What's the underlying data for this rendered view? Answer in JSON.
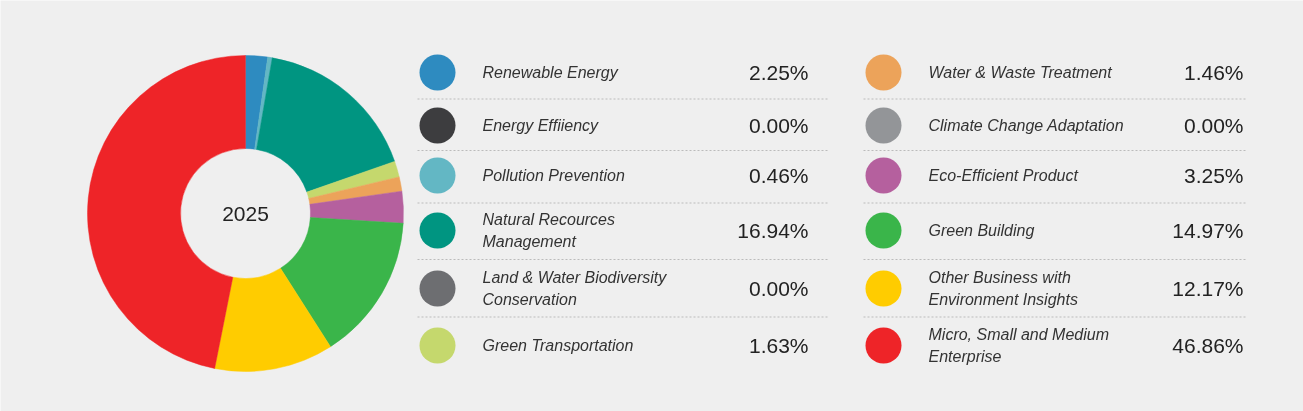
{
  "chart_data": {
    "type": "donut",
    "categories": [
      "Renewable Energy",
      "Energy Effiiency",
      "Pollution Prevention",
      "Natural Recources Management",
      "Land & Water Biodiversity Conservation",
      "Green Transportation",
      "Water & Waste Treatment",
      "Climate Change Adaptation",
      "Eco-Efficient Product",
      "Green Building",
      "Other Business with Environment Insights",
      "Micro, Small and Medium Enterprise"
    ],
    "values": [
      2.25,
      0.0,
      0.46,
      16.94,
      0.0,
      1.63,
      1.46,
      0.0,
      3.25,
      14.97,
      12.17,
      46.86
    ],
    "colors": [
      "#2e8bc0",
      "#3d3d3f",
      "#63b7c4",
      "#009581",
      "#6d6e71",
      "#c5d86d",
      "#eca35a",
      "#939598",
      "#b5609e",
      "#3ab54a",
      "#ffcc00",
      "#ee2428"
    ],
    "value_labels": [
      "2.25%",
      "0.00%",
      "0.46%",
      "16.94%",
      "0.00%",
      "1.63%",
      "1.46%",
      "0.00%",
      "3.25%",
      "14.97%",
      "12.17%",
      "46.86%"
    ],
    "annotations": [
      "2025"
    ],
    "legend": "right"
  }
}
